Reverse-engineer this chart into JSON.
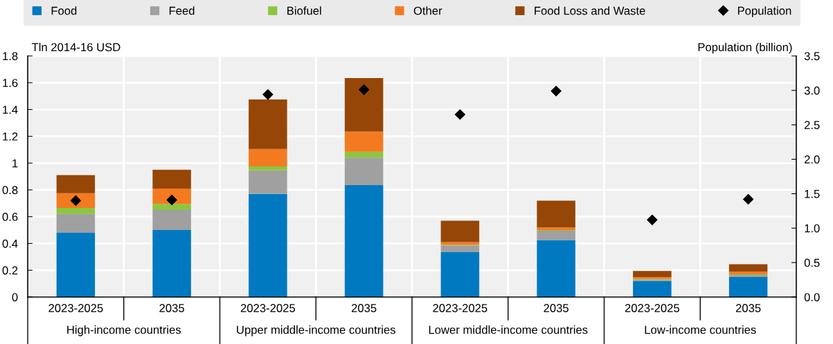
{
  "chart_data": {
    "type": "bar",
    "stacked": true,
    "categories": [
      "2023-2025",
      "2035",
      "2023-2025",
      "2035",
      "2023-2025",
      "2035",
      "2023-2025",
      "2035"
    ],
    "annotations": [
      "High-income countries",
      "Upper middle-income countries",
      "Lower middle-income countries",
      "Low-income countries"
    ],
    "ylabel": "Tln 2014-16 USD",
    "y2label": "Population (billion)",
    "series": [
      {
        "name": "Food",
        "color": "#0079c1",
        "values": [
          0.48,
          0.5,
          0.77,
          0.835,
          0.335,
          0.425,
          0.12,
          0.15
        ]
      },
      {
        "name": "Feed",
        "color": "#a0a0a0",
        "values": [
          0.14,
          0.15,
          0.175,
          0.205,
          0.05,
          0.07,
          0.01,
          0.015
        ]
      },
      {
        "name": "Biofuel",
        "color": "#8cc641",
        "values": [
          0.045,
          0.045,
          0.03,
          0.045,
          0.005,
          0.005,
          0.005,
          0.005
        ]
      },
      {
        "name": "Other",
        "color": "#f47a20",
        "values": [
          0.11,
          0.115,
          0.13,
          0.15,
          0.02,
          0.02,
          0.015,
          0.02
        ]
      },
      {
        "name": "Food Loss and Waste",
        "color": "#964607",
        "values": [
          0.135,
          0.14,
          0.37,
          0.4,
          0.16,
          0.2,
          0.045,
          0.055
        ]
      },
      {
        "name": "Population",
        "type": "scatter",
        "axis": "y2",
        "marker": "diamond",
        "color": "#000000",
        "values": [
          1.4,
          1.41,
          2.94,
          3.01,
          2.65,
          2.99,
          1.12,
          1.42
        ]
      }
    ],
    "ylim": [
      0,
      1.8
    ],
    "yticks": [
      0,
      0.2,
      0.4,
      0.6,
      0.8,
      1,
      1.2,
      1.4,
      1.6,
      1.8
    ],
    "y2lim": [
      0,
      3.5
    ],
    "y2ticks": [
      {
        "value": 0,
        "label": "0.0"
      },
      {
        "value": 0.5,
        "label": "0.5"
      },
      {
        "value": 1,
        "label": "1.0"
      },
      {
        "value": 1.5,
        "label": "1.5"
      },
      {
        "value": 2,
        "label": "2.0"
      },
      {
        "value": 2.5,
        "label": "2.5"
      },
      {
        "value": 3,
        "label": "3.0"
      },
      {
        "value": 3.5,
        "label": "3.5"
      }
    ],
    "grid": true,
    "legend": "top"
  }
}
